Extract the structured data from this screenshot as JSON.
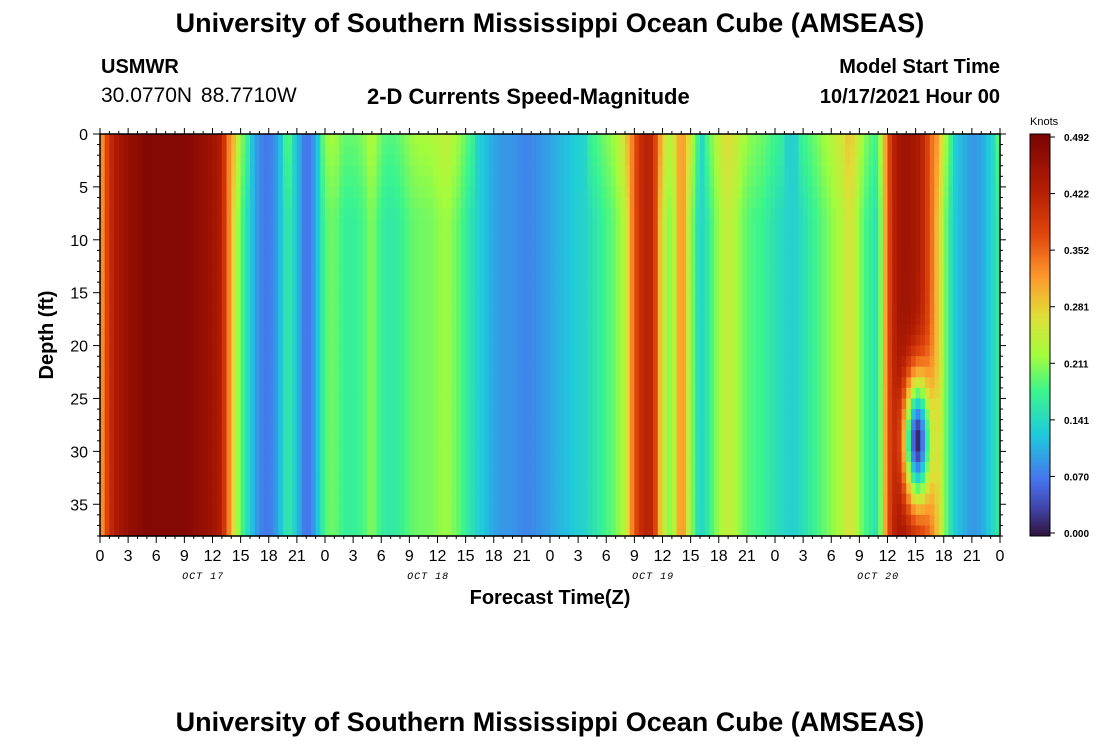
{
  "page": {
    "title_top": "University of Southern Mississippi Ocean Cube (AMSEAS)",
    "title_bottom": "University of Southern Mississippi Ocean Cube (AMSEAS)",
    "station": "USMWR",
    "coords": "30.0770N  88.7710W",
    "subtitle": "2-D Currents Speed-Magnitude",
    "model_start_label": "Model Start Time",
    "model_start_value": "10/17/2021 Hour 00"
  },
  "chart_data": {
    "type": "heatmap",
    "title": "2-D Currents Speed-Magnitude",
    "xlabel": "Forecast Time(Z)",
    "ylabel": "Depth (ft)",
    "x_unit": "hours since 10/17/2021 00Z",
    "xlim": [
      0,
      96
    ],
    "ylim": [
      0,
      38
    ],
    "x_ticks": [
      0,
      3,
      6,
      9,
      12,
      15,
      18,
      21,
      24,
      27,
      30,
      33,
      36,
      39,
      42,
      45,
      48,
      51,
      54,
      57,
      60,
      63,
      66,
      69,
      72,
      75,
      78,
      81,
      84,
      87,
      90,
      93,
      96
    ],
    "x_tick_labels": [
      "0",
      "3",
      "6",
      "9",
      "12",
      "15",
      "18",
      "21",
      "0",
      "3",
      "6",
      "9",
      "12",
      "15",
      "18",
      "21",
      "0",
      "3",
      "6",
      "9",
      "12",
      "15",
      "18",
      "21",
      "0",
      "3",
      "6",
      "9",
      "12",
      "15",
      "18",
      "21",
      "0"
    ],
    "day_labels": [
      {
        "hour": 11,
        "label": "OCT 17"
      },
      {
        "hour": 35,
        "label": "OCT 18"
      },
      {
        "hour": 59,
        "label": "OCT 19"
      },
      {
        "hour": 83,
        "label": "OCT 20"
      }
    ],
    "y_ticks": [
      0,
      5,
      10,
      15,
      20,
      25,
      30,
      35
    ],
    "colorbar": {
      "unit": "Knots",
      "min": 0.0,
      "max": 0.492,
      "ticks": [
        "0.000",
        "0.070",
        "0.141",
        "0.211",
        "0.281",
        "0.352",
        "0.422",
        "0.492"
      ]
    },
    "speed_profile_hours": [
      0,
      1,
      2,
      3,
      4,
      5,
      6,
      7,
      8,
      9,
      10,
      11,
      12,
      13,
      14,
      15,
      16,
      17,
      18,
      19,
      20,
      21,
      22,
      23,
      24,
      25,
      26,
      27,
      28,
      29,
      30,
      31,
      32,
      33,
      34,
      35,
      36,
      37,
      38,
      39,
      40,
      41,
      42,
      43,
      44,
      45,
      46,
      47,
      48,
      49,
      50,
      51,
      52,
      53,
      54,
      55,
      56,
      57,
      58,
      59,
      60,
      61,
      62,
      63,
      64,
      65,
      66,
      67,
      68,
      69,
      70,
      71,
      72,
      73,
      74,
      75,
      76,
      77,
      78,
      79,
      80,
      81,
      82,
      83,
      84,
      85,
      86,
      87,
      88,
      89,
      90,
      91,
      92,
      93,
      94,
      95,
      96
    ],
    "speed_profile_knots": [
      0.3,
      0.4,
      0.44,
      0.46,
      0.47,
      0.48,
      0.48,
      0.48,
      0.48,
      0.48,
      0.47,
      0.46,
      0.45,
      0.42,
      0.3,
      0.19,
      0.13,
      0.08,
      0.07,
      0.1,
      0.17,
      0.12,
      0.06,
      0.1,
      0.19,
      0.2,
      0.17,
      0.17,
      0.18,
      0.21,
      0.17,
      0.16,
      0.17,
      0.19,
      0.2,
      0.2,
      0.21,
      0.22,
      0.2,
      0.17,
      0.14,
      0.12,
      0.1,
      0.09,
      0.09,
      0.08,
      0.08,
      0.09,
      0.1,
      0.11,
      0.12,
      0.13,
      0.14,
      0.16,
      0.18,
      0.2,
      0.24,
      0.36,
      0.42,
      0.41,
      0.25,
      0.2,
      0.34,
      0.22,
      0.13,
      0.17,
      0.22,
      0.25,
      0.22,
      0.19,
      0.18,
      0.17,
      0.15,
      0.14,
      0.13,
      0.15,
      0.17,
      0.19,
      0.21,
      0.23,
      0.27,
      0.21,
      0.17,
      0.15,
      0.36,
      0.44,
      0.45,
      0.44,
      0.4,
      0.32,
      0.22,
      0.13,
      0.11,
      0.09,
      0.1,
      0.13,
      0.17
    ],
    "anomaly_note": "low-speed pocket near hour 87, depth 22-37 ft"
  }
}
